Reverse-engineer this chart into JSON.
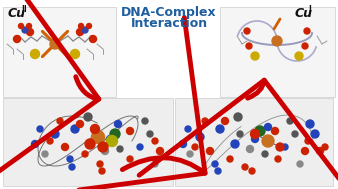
{
  "bg_color": "#ffffff",
  "label_left": "Cu",
  "label_left_super": "II",
  "label_right": "Cu",
  "label_right_super": "I",
  "title_line1": "DNA-Complex",
  "title_line2": "Interaction",
  "title_color": "#2060a0",
  "label_color": "#111111",
  "arrow_color": "#cc0000",
  "figsize": [
    3.38,
    1.89
  ],
  "dpi": 100
}
